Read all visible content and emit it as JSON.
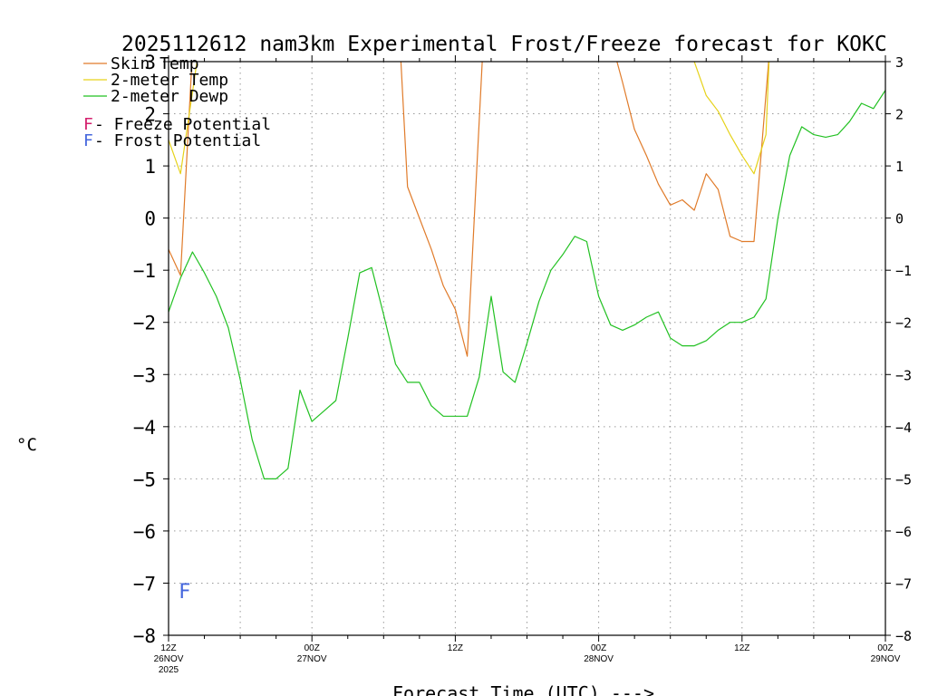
{
  "chart_data": {
    "type": "line",
    "title": "2025112612 nam3km Experimental Frost/Freeze forecast for KOKC",
    "xlabel": "Forecast Time (UTC) --->",
    "ylabel": "°C",
    "ylim": [
      -8,
      3
    ],
    "xlim_hours": [
      0,
      60
    ],
    "grid": true,
    "y_ticks": [
      "−8",
      "−7",
      "−6",
      "−5",
      "−4",
      "−3",
      "−2",
      "−1",
      "0",
      "1",
      "2",
      "3"
    ],
    "x_ticks": [
      {
        "hour": 0,
        "lines": [
          "12Z",
          "26NOV",
          "2025"
        ]
      },
      {
        "hour": 12,
        "lines": [
          "00Z",
          "27NOV"
        ]
      },
      {
        "hour": 24,
        "lines": [
          "12Z"
        ]
      },
      {
        "hour": 36,
        "lines": [
          "00Z",
          "28NOV"
        ]
      },
      {
        "hour": 48,
        "lines": [
          "12Z"
        ]
      },
      {
        "hour": 60,
        "lines": [
          "00Z",
          "29NOV"
        ]
      }
    ],
    "legend": {
      "placement": "top-left",
      "entries": [
        {
          "label": "Skin Temp",
          "color": "#e07b2a"
        },
        {
          "label": "2-meter Temp",
          "color": "#e6d21a"
        },
        {
          "label": "2-meter Dewp",
          "color": "#22c122"
        }
      ],
      "markers": [
        {
          "letter": "F",
          "text": " - Freeze Potential",
          "color": "#d4206e"
        },
        {
          "letter": "F",
          "text": " - Frost Potential",
          "color": "#4466dd"
        }
      ]
    },
    "annotations": [
      {
        "letter": "F",
        "hour": 1,
        "value": -7.1,
        "color": "#4466dd"
      }
    ],
    "series": [
      {
        "name": "Skin Temp",
        "color": "#e07b2a",
        "x": [
          0,
          1,
          2,
          19.4,
          20,
          21,
          22,
          23,
          24,
          25,
          26.3,
          27.3,
          37.3,
          38,
          39,
          40,
          41,
          42,
          43,
          44,
          45,
          46,
          47,
          48,
          49,
          50.3
        ],
        "y": [
          -0.6,
          -1.1,
          3.2,
          3.2,
          0.6,
          0,
          -0.6,
          -1.3,
          -1.75,
          -2.65,
          3.2,
          3.2,
          3.2,
          2.6,
          1.7,
          1.2,
          0.65,
          0.25,
          0.35,
          0.15,
          0.85,
          0.55,
          -0.35,
          -0.45,
          -0.45,
          3.2
        ]
      },
      {
        "name": "2-meter Temp",
        "color": "#e6d21a",
        "x": [
          0,
          1,
          2.5,
          43.6,
          44,
          45,
          46,
          47,
          48,
          49,
          50,
          50.3
        ],
        "y": [
          1.5,
          0.85,
          3.2,
          3.2,
          3.0,
          2.35,
          2.05,
          1.6,
          1.2,
          0.85,
          1.6,
          3.2
        ]
      },
      {
        "name": "2-meter Dewp",
        "color": "#22c122",
        "x": [
          0,
          1,
          2,
          3,
          4,
          5,
          6,
          7,
          8,
          9,
          10,
          11,
          12,
          13,
          14,
          15,
          16,
          17,
          18,
          19,
          20,
          21,
          22,
          23,
          24,
          25,
          26,
          27,
          28,
          29,
          30,
          31,
          32,
          33,
          34,
          35,
          36,
          37,
          38,
          39,
          40,
          41,
          42,
          43,
          44,
          45,
          46,
          47,
          48,
          49,
          50,
          51,
          52,
          53,
          54,
          55,
          56,
          57,
          58,
          59,
          60
        ],
        "y": [
          -1.8,
          -1.15,
          -0.65,
          -1.05,
          -1.5,
          -2.1,
          -3.1,
          -4.25,
          -5.0,
          -5.0,
          -4.8,
          -3.3,
          -3.9,
          -3.7,
          -3.5,
          -2.3,
          -1.05,
          -0.95,
          -1.85,
          -2.8,
          -3.15,
          -3.15,
          -3.6,
          -3.8,
          -3.8,
          -3.8,
          -3.05,
          -1.5,
          -2.95,
          -3.15,
          -2.4,
          -1.6,
          -1.0,
          -0.7,
          -0.35,
          -0.45,
          -1.5,
          -2.05,
          -2.15,
          -2.05,
          -1.9,
          -1.8,
          -2.3,
          -2.45,
          -2.45,
          -2.35,
          -2.15,
          -2.0,
          -2.0,
          -1.9,
          -1.55,
          0,
          1.2,
          1.75,
          1.6,
          1.55,
          1.6,
          1.85,
          2.2,
          2.1,
          2.45
        ]
      }
    ]
  }
}
